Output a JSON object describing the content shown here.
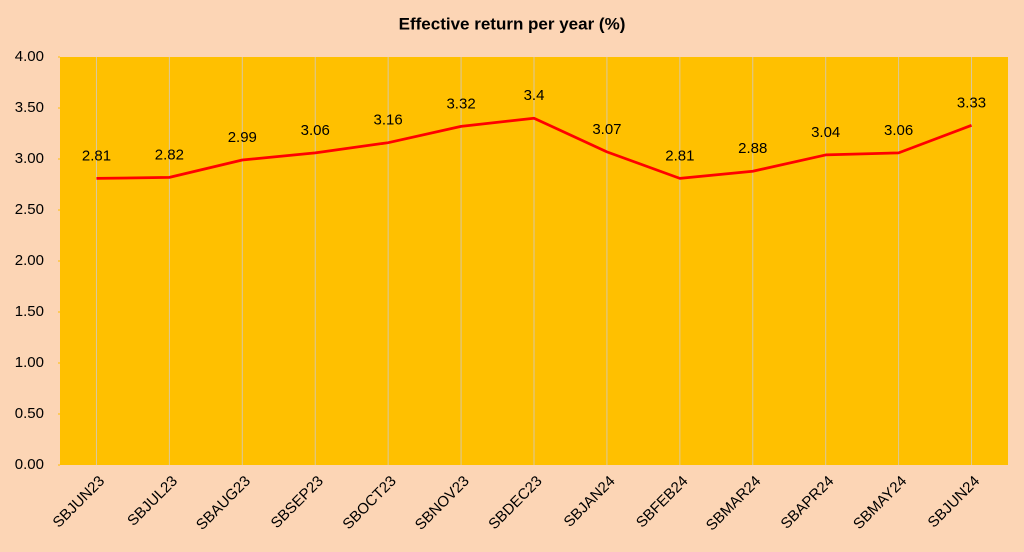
{
  "chart_data": {
    "type": "line",
    "title": "Effective return per year (%)",
    "categories": [
      "SBJUN23",
      "SBJUL23",
      "SBAUG23",
      "SBSEP23",
      "SBOCT23",
      "SBNOV23",
      "SBDEC23",
      "SBJAN24",
      "SBFEB24",
      "SBMAR24",
      "SBAPR24",
      "SBMAY24",
      "SBJUN24"
    ],
    "values": [
      2.81,
      2.82,
      2.99,
      3.06,
      3.16,
      3.32,
      3.4,
      3.07,
      2.81,
      2.88,
      3.04,
      3.06,
      3.33
    ],
    "color": "#ff0000",
    "ylim": [
      0,
      4
    ],
    "yticks": [
      {
        "value": 0,
        "label": "0.00"
      },
      {
        "value": 0.5,
        "label": "0.50"
      },
      {
        "value": 1,
        "label": "1.00"
      },
      {
        "value": 1.5,
        "label": "1.50"
      },
      {
        "value": 2,
        "label": "2.00"
      },
      {
        "value": 2.5,
        "label": "2.50"
      },
      {
        "value": 3,
        "label": "3.00"
      },
      {
        "value": 3.5,
        "label": "3.50"
      },
      {
        "value": 4,
        "label": "4.00"
      }
    ],
    "grid": true
  }
}
